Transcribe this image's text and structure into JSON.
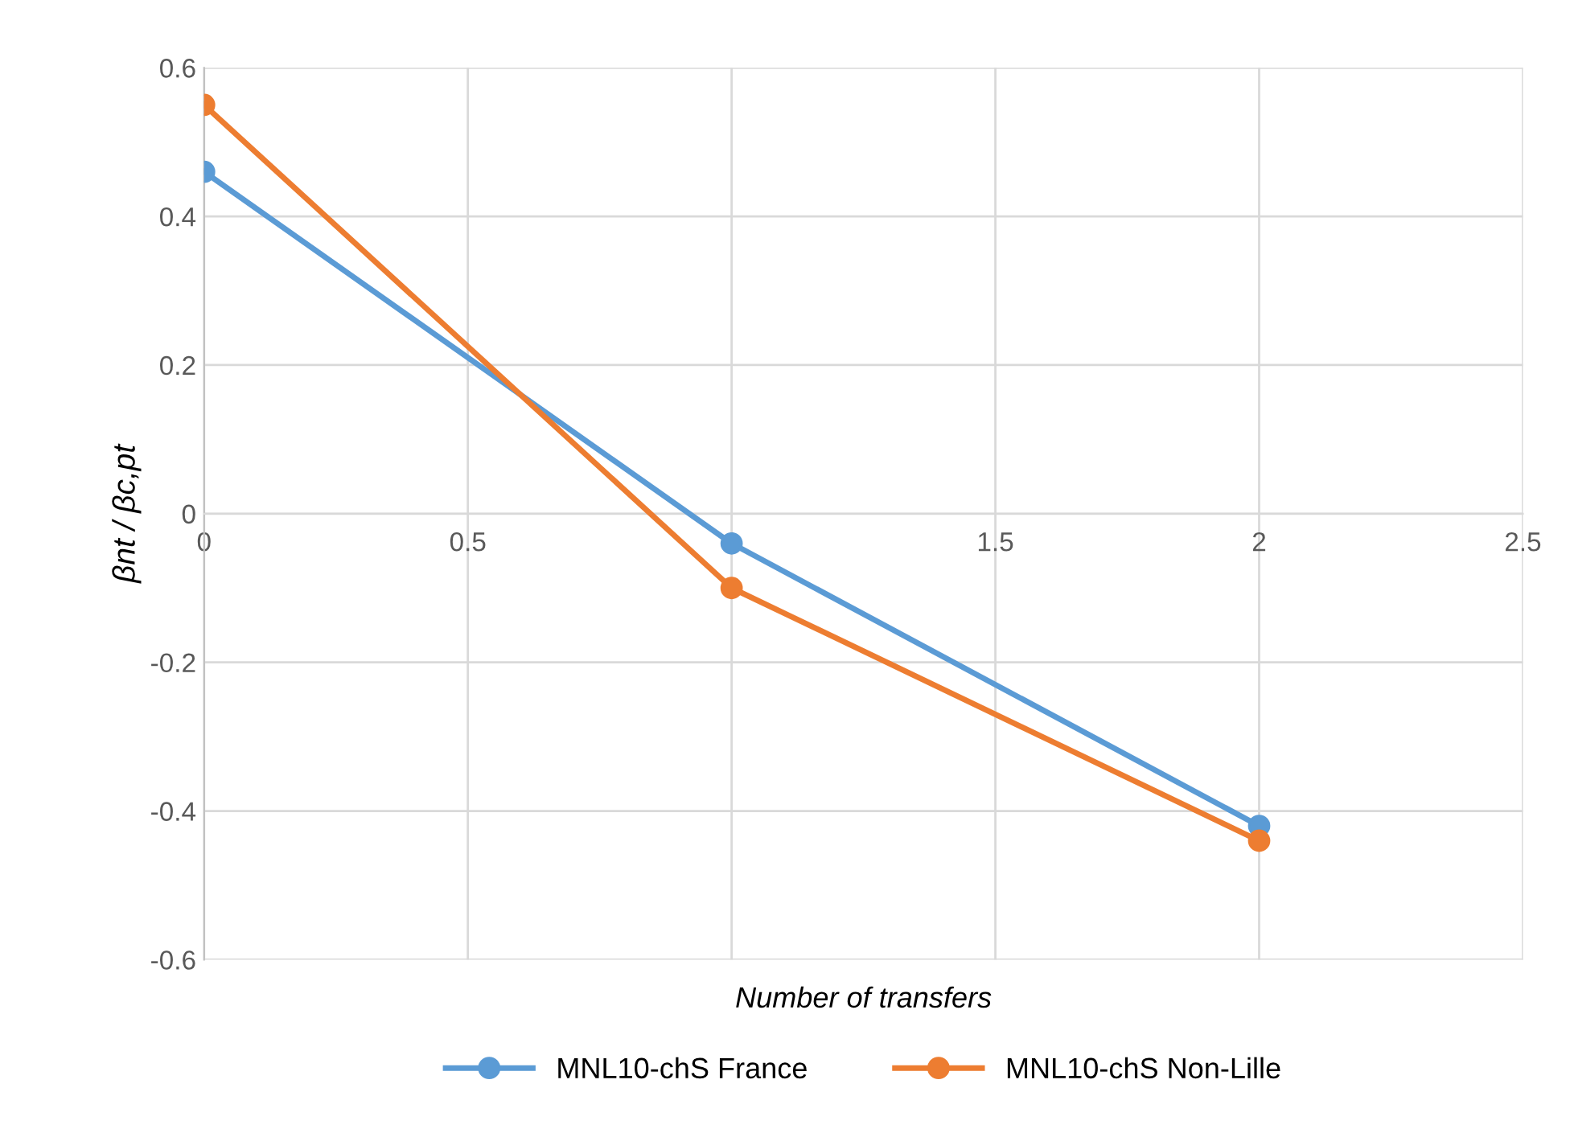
{
  "chart_data": {
    "type": "line",
    "xlabel": "Number of transfers",
    "ylabel": "βnt / βc,pt",
    "x": [
      0,
      1,
      2
    ],
    "series": [
      {
        "name": "MNL10-chS France",
        "color": "#5b9bd5",
        "values": [
          0.46,
          -0.04,
          -0.42
        ]
      },
      {
        "name": "MNL10-chS Non-Lille",
        "color": "#ed7d31",
        "values": [
          0.55,
          -0.1,
          -0.44
        ]
      }
    ],
    "xlim": [
      0,
      2.5
    ],
    "xticks": [
      0,
      0.5,
      1,
      1.5,
      2,
      2.5
    ],
    "ylim": [
      -0.6,
      0.6
    ],
    "yticks": [
      -0.6,
      -0.4,
      -0.2,
      0,
      0.2,
      0.4,
      0.6
    ],
    "grid": true,
    "legend": "bottom",
    "marker": "circle",
    "line_style": "solid"
  }
}
